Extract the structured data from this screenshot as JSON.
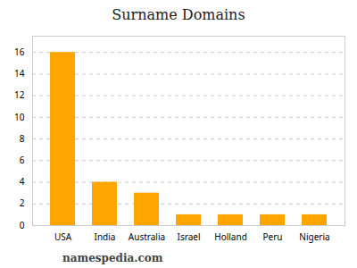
{
  "chart_data": {
    "type": "bar",
    "title": "Surname Domains",
    "categories": [
      "USA",
      "India",
      "Australia",
      "Israel",
      "Holland",
      "Peru",
      "Nigeria"
    ],
    "values": [
      16,
      4,
      3,
      1,
      1,
      1,
      1
    ],
    "color": "#FFA500",
    "ylim": [
      0,
      17.5
    ],
    "yticks": [
      0,
      2,
      4,
      6,
      8,
      10,
      12,
      14,
      16
    ],
    "grid": true,
    "caption": "namespedia.com"
  }
}
